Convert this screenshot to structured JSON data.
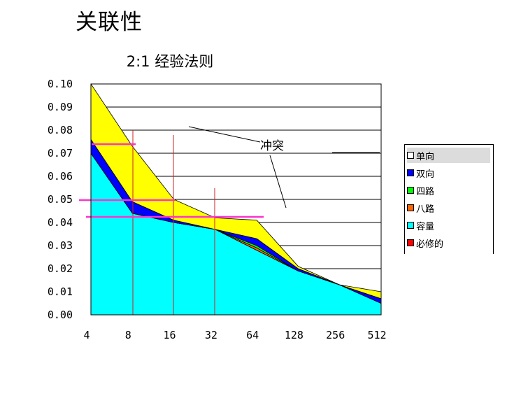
{
  "page": {
    "title": "关联性"
  },
  "chart_data": {
    "type": "area",
    "title": "2:1 经验法则",
    "xlabel": "",
    "ylabel": "",
    "categories": [
      "4",
      "8",
      "16",
      "32",
      "64",
      "128",
      "256",
      "512"
    ],
    "ylim": [
      0,
      0.1
    ],
    "yticks": [
      "0.00",
      "0.01",
      "0.02",
      "0.03",
      "0.04",
      "0.05",
      "0.06",
      "0.07",
      "0.08",
      "0.09",
      "0.10"
    ],
    "stacked": true,
    "grid": "horizontal",
    "legend_position": "right",
    "series": [
      {
        "name": "容量",
        "color": "#00ffff",
        "values": [
          0.07,
          0.044,
          0.04,
          0.037,
          0.028,
          0.019,
          0.013,
          0.005
        ]
      },
      {
        "name": "必修的",
        "color": "#ff0000",
        "values": [
          0.0,
          0.0,
          0.0,
          0.0,
          0.0,
          0.0,
          0.0,
          0.0
        ]
      },
      {
        "name": "八路",
        "color": "#ff6600",
        "values": [
          0.0,
          0.0,
          0.0,
          0.0,
          0.001,
          0.0,
          0.0,
          0.0
        ]
      },
      {
        "name": "四路",
        "color": "#00ff00",
        "values": [
          0.0,
          0.0,
          0.0,
          0.0,
          0.001,
          0.0,
          0.0,
          0.0
        ]
      },
      {
        "name": "双向",
        "color": "#0000ff",
        "values": [
          0.006,
          0.005,
          0.001,
          0.0,
          0.003,
          0.001,
          0.0,
          0.002
        ]
      },
      {
        "name": "单向",
        "color": "#ffff00",
        "values": [
          0.024,
          0.024,
          0.009,
          0.005,
          0.008,
          0.001,
          0.0,
          0.003
        ]
      }
    ],
    "legend_order": [
      "单向",
      "双向",
      "四路",
      "八路",
      "容量",
      "必修的"
    ],
    "annotations": [
      {
        "text": "冲突"
      }
    ]
  }
}
